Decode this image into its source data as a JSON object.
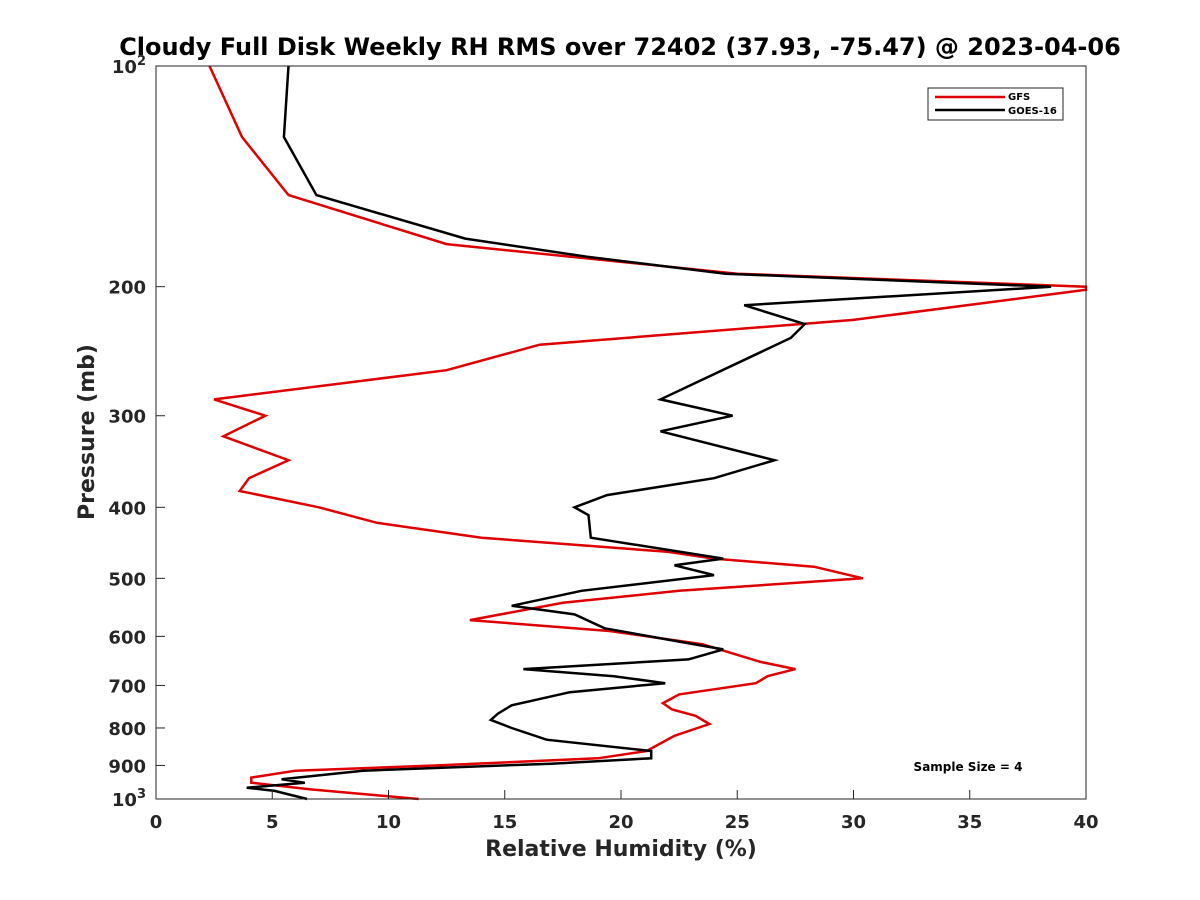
{
  "chart_data": {
    "type": "line",
    "title": "Cloudy Full Disk Weekly RH RMS over 72402 (37.93, -75.47) @ 2023-04-06",
    "xlabel": "Relative Humidity (%)",
    "ylabel": "Pressure (mb)",
    "xlim": [
      0,
      40
    ],
    "ylim": [
      100,
      1000
    ],
    "y_scale": "log",
    "y_reversed": true,
    "grid": false,
    "legend_position": "top-right",
    "x_ticks": [
      "0",
      "5",
      "10",
      "15",
      "20",
      "25",
      "30",
      "35",
      "40"
    ],
    "y_ticks": [
      {
        "value": 100,
        "base": "10",
        "exp": "2"
      },
      {
        "value": 200,
        "label": "200"
      },
      {
        "value": 300,
        "label": "300"
      },
      {
        "value": 400,
        "label": "400"
      },
      {
        "value": 500,
        "label": "500"
      },
      {
        "value": 600,
        "label": "600"
      },
      {
        "value": 700,
        "label": "700"
      },
      {
        "value": 800,
        "label": "800"
      },
      {
        "value": 900,
        "label": "900"
      },
      {
        "value": 1000,
        "base": "10",
        "exp": "3"
      }
    ],
    "annotation": "Sample Size = 4",
    "series": [
      {
        "name": "GFS",
        "color": "#e00000",
        "points": [
          [
            2.3,
            100
          ],
          [
            3.7,
            125
          ],
          [
            5.7,
            150
          ],
          [
            12.5,
            175
          ],
          [
            25,
            192
          ],
          [
            40,
            200
          ],
          [
            40,
            202
          ],
          [
            30,
            222
          ],
          [
            16.5,
            240
          ],
          [
            12.5,
            260
          ],
          [
            2.5,
            285
          ],
          [
            4.7,
            300
          ],
          [
            2.9,
            320
          ],
          [
            5.7,
            345
          ],
          [
            4,
            365
          ],
          [
            3.6,
            380
          ],
          [
            7,
            400
          ],
          [
            9.5,
            420
          ],
          [
            14,
            440
          ],
          [
            22,
            460
          ],
          [
            24,
            470
          ],
          [
            28.3,
            482
          ],
          [
            30.4,
            500
          ],
          [
            22.5,
            520
          ],
          [
            17.5,
            540
          ],
          [
            13.5,
            570
          ],
          [
            19.5,
            590
          ],
          [
            23.5,
            615
          ],
          [
            26,
            650
          ],
          [
            27.5,
            665
          ],
          [
            26.3,
            680
          ],
          [
            25.8,
            695
          ],
          [
            22.5,
            720
          ],
          [
            21.8,
            740
          ],
          [
            22.2,
            755
          ],
          [
            23.2,
            770
          ],
          [
            23.8,
            790
          ],
          [
            22.3,
            820
          ],
          [
            21.1,
            860
          ],
          [
            19,
            880
          ],
          [
            12,
            900
          ],
          [
            6,
            915
          ],
          [
            4.1,
            935
          ],
          [
            4.1,
            950
          ],
          [
            6.6,
            970
          ],
          [
            11.3,
            1000
          ]
        ]
      },
      {
        "name": "GOES-16",
        "color": "#000000",
        "points": [
          [
            5.7,
            100
          ],
          [
            5.5,
            125
          ],
          [
            6.9,
            150
          ],
          [
            13.3,
            172
          ],
          [
            18.5,
            182
          ],
          [
            24.5,
            192
          ],
          [
            38.5,
            200
          ],
          [
            25.3,
            212
          ],
          [
            27.9,
            225
          ],
          [
            27.3,
            235
          ],
          [
            21.7,
            285
          ],
          [
            24.8,
            300
          ],
          [
            21.7,
            315
          ],
          [
            26.6,
            345
          ],
          [
            24,
            365
          ],
          [
            19.4,
            385
          ],
          [
            18,
            400
          ],
          [
            18.6,
            410
          ],
          [
            18.7,
            440
          ],
          [
            24.4,
            470
          ],
          [
            22.3,
            480
          ],
          [
            24,
            495
          ],
          [
            18.3,
            520
          ],
          [
            15.3,
            545
          ],
          [
            18,
            560
          ],
          [
            19.3,
            585
          ],
          [
            22.5,
            610
          ],
          [
            24.4,
            625
          ],
          [
            22.9,
            645
          ],
          [
            15.8,
            665
          ],
          [
            19.7,
            680
          ],
          [
            21.9,
            695
          ],
          [
            17.8,
            715
          ],
          [
            15.3,
            745
          ],
          [
            14.7,
            765
          ],
          [
            14.4,
            780
          ],
          [
            15.3,
            800
          ],
          [
            16.8,
            830
          ],
          [
            21.3,
            860
          ],
          [
            21.3,
            880
          ],
          [
            17,
            895
          ],
          [
            8.9,
            915
          ],
          [
            5.4,
            940
          ],
          [
            6.4,
            950
          ],
          [
            3.9,
            965
          ],
          [
            5.1,
            975
          ],
          [
            6.5,
            1000
          ]
        ]
      }
    ]
  }
}
